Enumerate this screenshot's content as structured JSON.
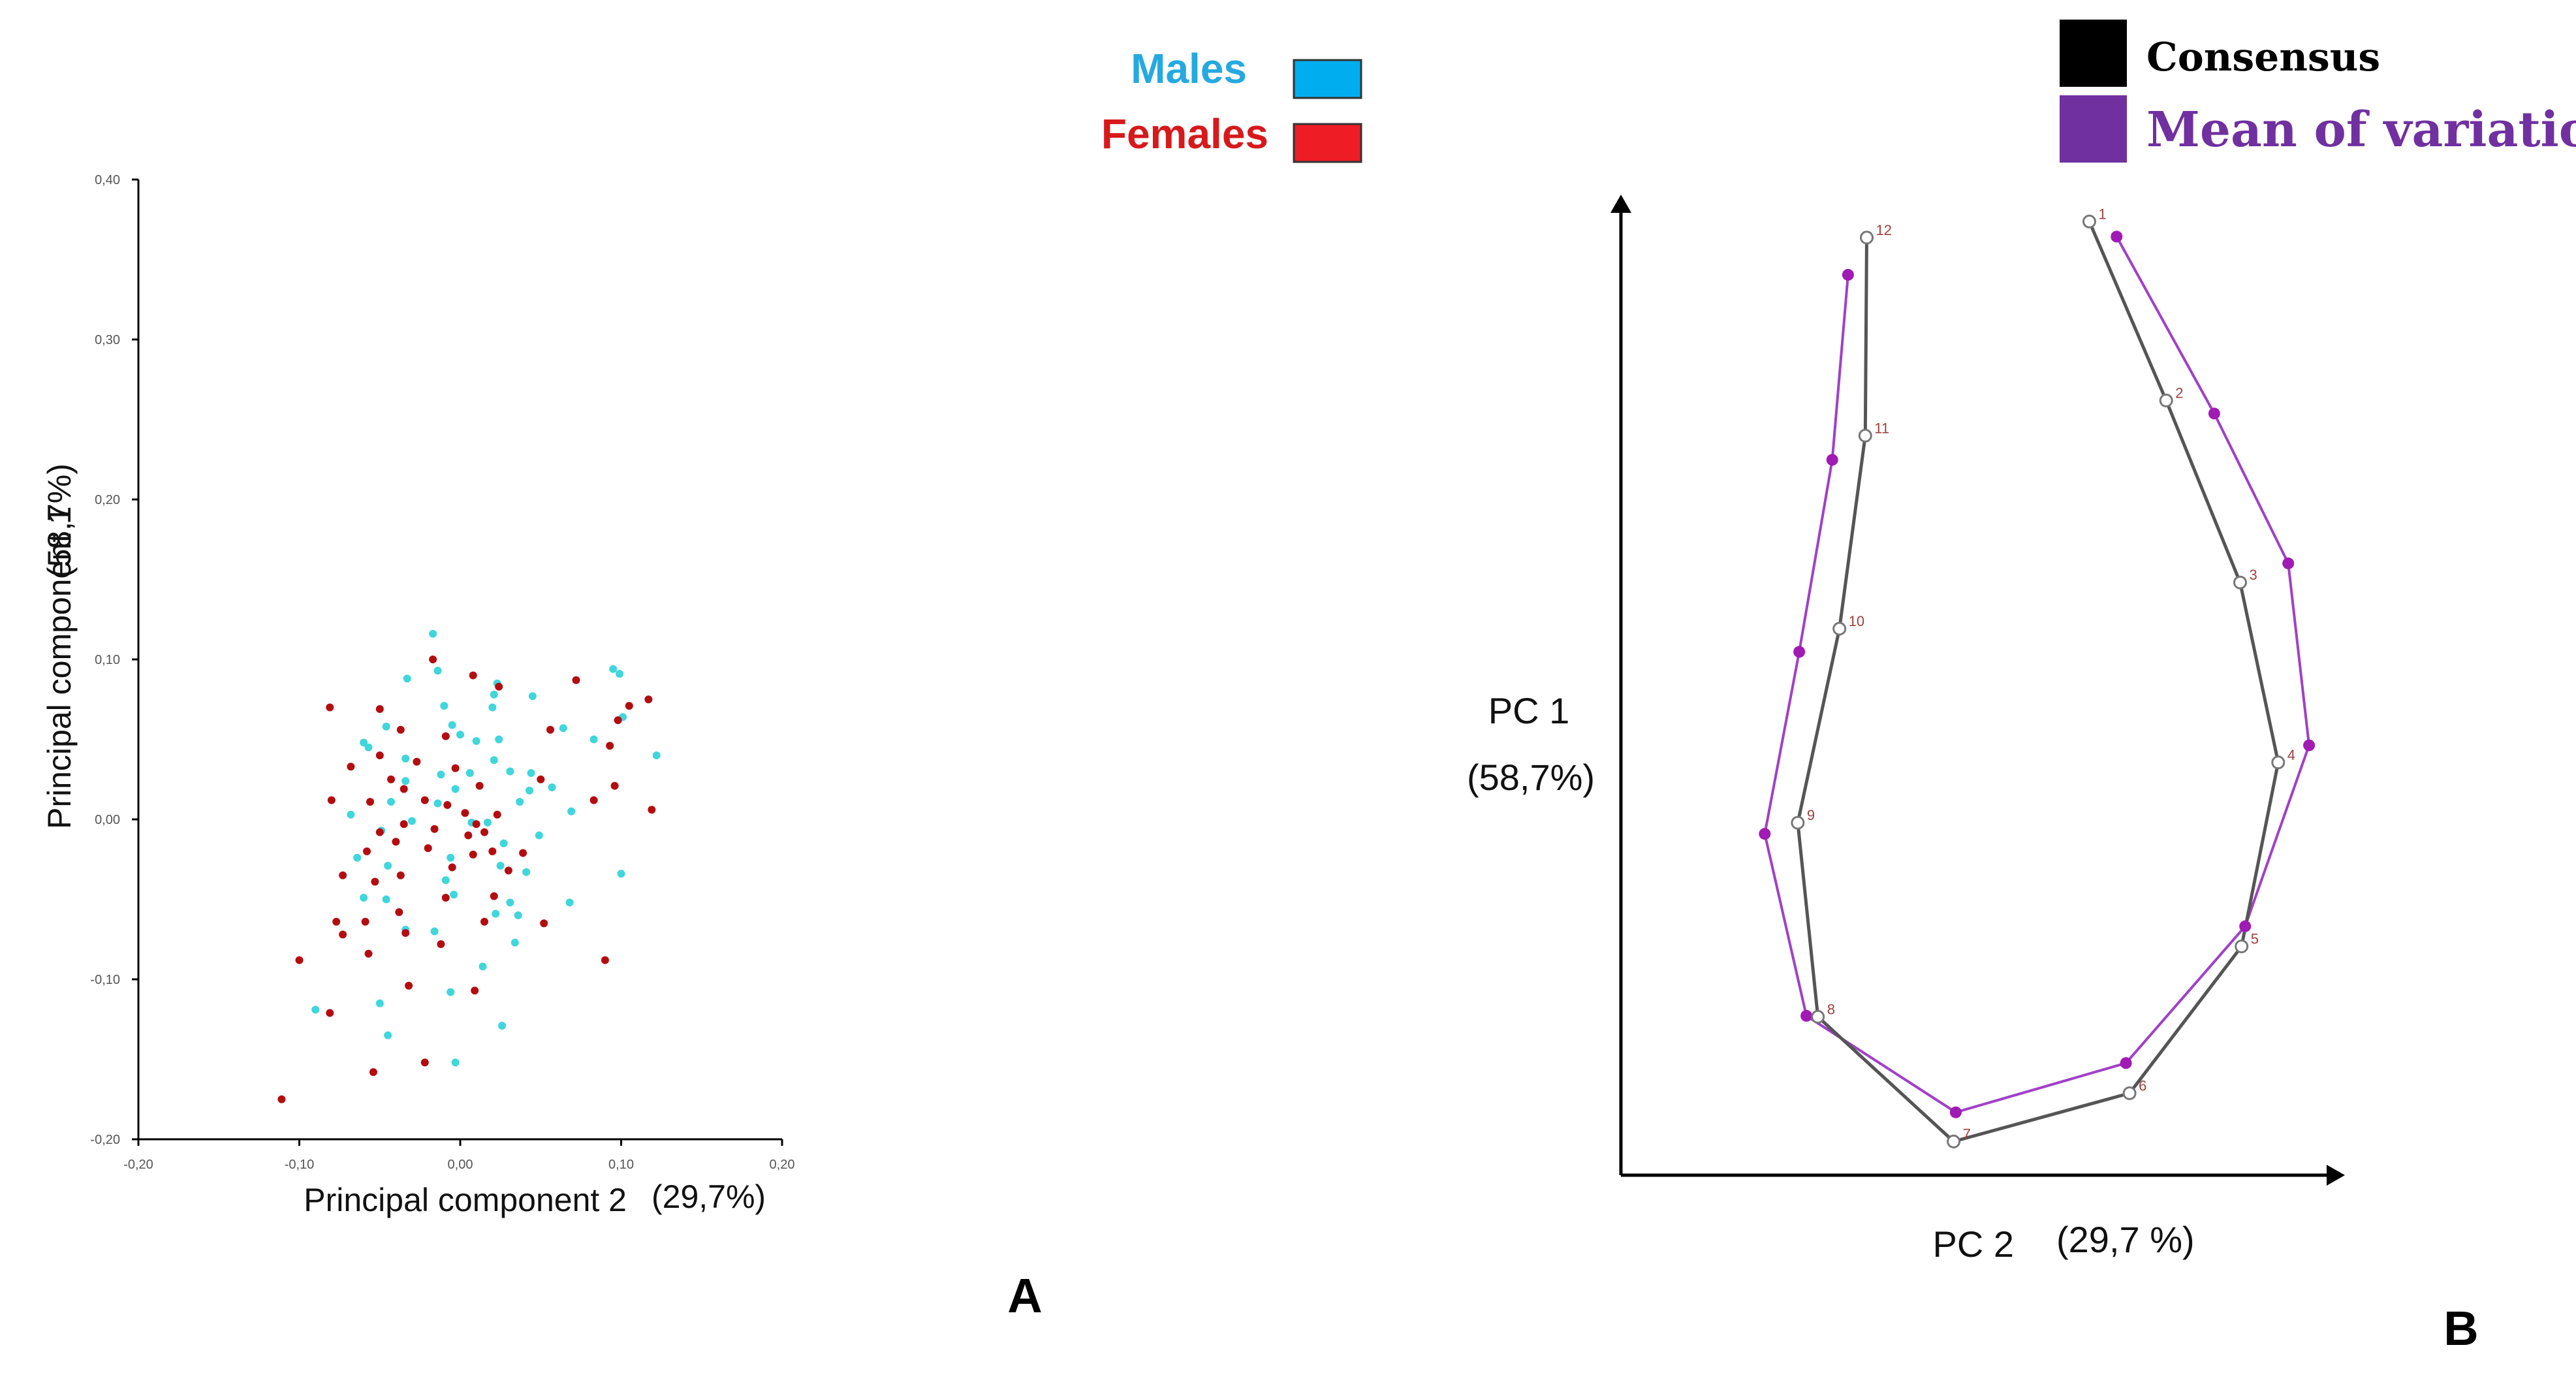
{
  "colors": {
    "male": "#3fd6dc",
    "female": "#b30d10",
    "male_swatch": "#00aeef",
    "female_swatch": "#ee1c25",
    "male_label": "#25a9e0",
    "female_label": "#d7191c",
    "consensus": "#000000",
    "consensus_line": "#555555",
    "variation": "#7030a0",
    "variation_line": "#a040c8",
    "variation_point": "#a01ab4",
    "landmark_label": "#a04040",
    "axis": "#000000",
    "tick_text": "#555555",
    "background": "#ffffff"
  },
  "legend_sex": {
    "males": "Males",
    "females": "Females"
  },
  "legend_shape": {
    "consensus": "Consensus",
    "variation": "Mean of variation"
  },
  "panel_labels": {
    "a": "A",
    "b": "B"
  },
  "chart_data": [
    {
      "type": "scatter",
      "panel": "A",
      "xlabel": "Principal component 2",
      "xlabel_pct": "(29,7%)",
      "ylabel": "Principal component 1",
      "ylabel_pct": "(58,7%)",
      "xlim": [
        -0.2,
        0.2
      ],
      "ylim": [
        -0.2,
        0.4
      ],
      "xticks": [
        -0.2,
        -0.1,
        0.0,
        0.1,
        0.2
      ],
      "xtick_labels": [
        "-0,20",
        "-0,10",
        "0,00",
        "0,10",
        "0,20"
      ],
      "yticks": [
        -0.2,
        -0.1,
        0.0,
        0.1,
        0.2,
        0.3,
        0.4
      ],
      "ytick_labels": [
        "-0,20",
        "-0,10",
        "0,00",
        "0,10",
        "0,20",
        "0,30",
        "0,40"
      ],
      "grid": false,
      "series": [
        {
          "name": "Males",
          "points": [
            [
              -0.017,
              0.116
            ],
            [
              -0.014,
              0.093
            ],
            [
              -0.033,
              0.088
            ],
            [
              0.023,
              0.085
            ],
            [
              0.021,
              0.078
            ],
            [
              0.095,
              0.094
            ],
            [
              0.099,
              0.091
            ],
            [
              0.045,
              0.077
            ],
            [
              0.02,
              0.07
            ],
            [
              -0.01,
              0.071
            ],
            [
              -0.005,
              0.059
            ],
            [
              0.0,
              0.053
            ],
            [
              0.024,
              0.05
            ],
            [
              0.101,
              0.064
            ],
            [
              0.122,
              0.04
            ],
            [
              -0.046,
              0.058
            ],
            [
              -0.06,
              0.048
            ],
            [
              -0.057,
              0.045
            ],
            [
              -0.034,
              0.038
            ],
            [
              0.01,
              0.049
            ],
            [
              0.021,
              0.037
            ],
            [
              0.044,
              0.029
            ],
            [
              0.064,
              0.057
            ],
            [
              0.083,
              0.05
            ],
            [
              -0.034,
              0.024
            ],
            [
              -0.012,
              0.028
            ],
            [
              -0.003,
              0.019
            ],
            [
              0.006,
              0.029
            ],
            [
              0.031,
              0.03
            ],
            [
              0.043,
              0.018
            ],
            [
              0.057,
              0.02
            ],
            [
              -0.068,
              0.003
            ],
            [
              -0.043,
              0.011
            ],
            [
              -0.014,
              0.01
            ],
            [
              0.037,
              0.011
            ],
            [
              0.069,
              0.005
            ],
            [
              -0.049,
              -0.007
            ],
            [
              -0.03,
              -0.001
            ],
            [
              0.007,
              -0.002
            ],
            [
              0.017,
              -0.002
            ],
            [
              0.049,
              -0.01
            ],
            [
              0.027,
              -0.015
            ],
            [
              -0.064,
              -0.024
            ],
            [
              -0.045,
              -0.029
            ],
            [
              -0.006,
              -0.024
            ],
            [
              0.025,
              -0.029
            ],
            [
              0.041,
              -0.033
            ],
            [
              0.1,
              -0.034
            ],
            [
              -0.06,
              -0.049
            ],
            [
              -0.046,
              -0.05
            ],
            [
              -0.009,
              -0.038
            ],
            [
              0.031,
              -0.052
            ],
            [
              0.068,
              -0.052
            ],
            [
              -0.034,
              -0.069
            ],
            [
              -0.004,
              -0.047
            ],
            [
              0.022,
              -0.059
            ],
            [
              0.036,
              -0.06
            ],
            [
              0.034,
              -0.077
            ],
            [
              -0.016,
              -0.07
            ],
            [
              0.014,
              -0.092
            ],
            [
              -0.09,
              -0.119
            ],
            [
              -0.05,
              -0.115
            ],
            [
              -0.045,
              -0.135
            ],
            [
              -0.006,
              -0.108
            ],
            [
              0.026,
              -0.129
            ],
            [
              -0.003,
              -0.152
            ]
          ]
        },
        {
          "name": "Females",
          "points": [
            [
              -0.017,
              0.1
            ],
            [
              0.008,
              0.09
            ],
            [
              0.024,
              0.083
            ],
            [
              -0.081,
              0.07
            ],
            [
              -0.05,
              0.069
            ],
            [
              0.072,
              0.087
            ],
            [
              0.098,
              0.062
            ],
            [
              0.105,
              0.071
            ],
            [
              0.117,
              0.075
            ],
            [
              -0.037,
              0.056
            ],
            [
              -0.009,
              0.052
            ],
            [
              0.056,
              0.056
            ],
            [
              -0.05,
              0.04
            ],
            [
              -0.027,
              0.036
            ],
            [
              -0.003,
              0.032
            ],
            [
              0.093,
              0.046
            ],
            [
              -0.068,
              0.033
            ],
            [
              -0.043,
              0.025
            ],
            [
              -0.035,
              0.019
            ],
            [
              0.012,
              0.021
            ],
            [
              0.05,
              0.025
            ],
            [
              0.096,
              0.021
            ],
            [
              0.119,
              0.006
            ],
            [
              -0.08,
              0.012
            ],
            [
              -0.056,
              0.011
            ],
            [
              -0.022,
              0.012
            ],
            [
              -0.008,
              0.009
            ],
            [
              0.003,
              0.004
            ],
            [
              0.01,
              -0.003
            ],
            [
              0.023,
              0.003
            ],
            [
              0.083,
              0.012
            ],
            [
              -0.05,
              -0.008
            ],
            [
              -0.035,
              -0.003
            ],
            [
              -0.016,
              -0.006
            ],
            [
              0.005,
              -0.01
            ],
            [
              0.015,
              -0.008
            ],
            [
              -0.058,
              -0.02
            ],
            [
              -0.04,
              -0.014
            ],
            [
              -0.02,
              -0.018
            ],
            [
              0.008,
              -0.022
            ],
            [
              0.02,
              -0.02
            ],
            [
              0.039,
              -0.021
            ],
            [
              -0.073,
              -0.035
            ],
            [
              -0.053,
              -0.039
            ],
            [
              -0.037,
              -0.035
            ],
            [
              -0.005,
              -0.03
            ],
            [
              0.03,
              -0.032
            ],
            [
              -0.077,
              -0.064
            ],
            [
              -0.059,
              -0.064
            ],
            [
              -0.038,
              -0.058
            ],
            [
              -0.009,
              -0.049
            ],
            [
              0.021,
              -0.048
            ],
            [
              -0.073,
              -0.072
            ],
            [
              -0.057,
              -0.084
            ],
            [
              -0.034,
              -0.071
            ],
            [
              -0.012,
              -0.078
            ],
            [
              0.015,
              -0.064
            ],
            [
              0.052,
              -0.065
            ],
            [
              -0.1,
              -0.088
            ],
            [
              -0.032,
              -0.104
            ],
            [
              0.009,
              -0.107
            ],
            [
              0.09,
              -0.088
            ],
            [
              -0.081,
              -0.121
            ],
            [
              -0.054,
              -0.158
            ],
            [
              -0.022,
              -0.152
            ],
            [
              -0.111,
              -0.175
            ]
          ]
        }
      ]
    },
    {
      "type": "line",
      "panel": "B",
      "xlabel": "PC 2",
      "xlabel_pct": "(29,7 %)",
      "ylabel": "PC 1",
      "ylabel_pct": "(58,7%)",
      "xlim": [
        0,
        1
      ],
      "ylim": [
        0,
        1
      ],
      "grid": false,
      "axis_ticks": false,
      "series": [
        {
          "name": "Consensus",
          "landmarks": [
            "1",
            "2",
            "3",
            "4",
            "5",
            "6",
            "7",
            "8",
            "9",
            "10",
            "11",
            "12"
          ],
          "x": [
            0.655,
            0.762,
            0.865,
            0.918,
            0.867,
            0.711,
            0.466,
            0.277,
            0.249,
            0.307,
            0.343,
            0.345
          ],
          "y": [
            0.955,
            0.777,
            0.596,
            0.417,
            0.234,
            0.088,
            0.04,
            0.164,
            0.357,
            0.55,
            0.742,
            0.939
          ]
        },
        {
          "name": "Mean of variation",
          "x": [
            0.693,
            0.829,
            0.932,
            0.961,
            0.872,
            0.706,
            0.469,
            0.261,
            0.203,
            0.251,
            0.297,
            0.319
          ],
          "y": [
            0.94,
            0.764,
            0.615,
            0.434,
            0.254,
            0.118,
            0.069,
            0.165,
            0.346,
            0.527,
            0.718,
            0.902
          ]
        }
      ]
    }
  ]
}
